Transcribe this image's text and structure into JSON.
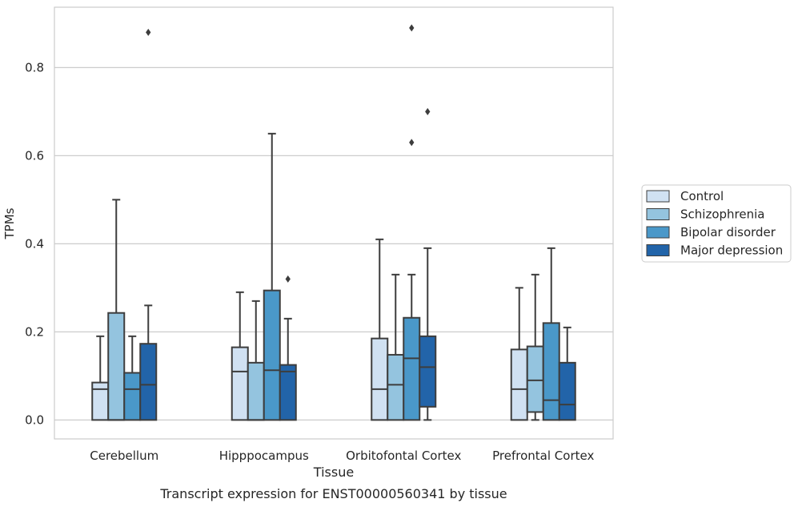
{
  "chart_data": {
    "type": "boxplot",
    "caption": "Transcript expression for ENST00000560341 by tissue",
    "xlabel": "Tissue",
    "ylabel": "TPMs",
    "ylim": [
      -0.043,
      0.937
    ],
    "yticks": [
      0.0,
      0.2,
      0.4,
      0.6,
      0.8
    ],
    "ytick_labels": [
      "0.0",
      "0.2",
      "0.4",
      "0.6",
      "0.8"
    ],
    "grid": "horizontal",
    "legend_position": "right",
    "categories": [
      "Cerebellum",
      "Hipppocampus",
      "Orbitofontal Cortex",
      "Prefrontal Cortex"
    ],
    "series": [
      {
        "name": "Control",
        "color": "#d0e1f2",
        "boxes": [
          {
            "whisker_low": 0.0,
            "q1": 0.0,
            "median": 0.07,
            "q3": 0.085,
            "whisker_high": 0.19,
            "outliers": []
          },
          {
            "whisker_low": 0.0,
            "q1": 0.0,
            "median": 0.11,
            "q3": 0.165,
            "whisker_high": 0.29,
            "outliers": []
          },
          {
            "whisker_low": 0.0,
            "q1": 0.0,
            "median": 0.07,
            "q3": 0.185,
            "whisker_high": 0.41,
            "outliers": []
          },
          {
            "whisker_low": 0.0,
            "q1": 0.0,
            "median": 0.07,
            "q3": 0.16,
            "whisker_high": 0.3,
            "outliers": []
          }
        ]
      },
      {
        "name": "Schizophrenia",
        "color": "#94c4df",
        "boxes": [
          {
            "whisker_low": 0.0,
            "q1": 0.0,
            "median": 0.0,
            "q3": 0.243,
            "whisker_high": 0.5,
            "outliers": []
          },
          {
            "whisker_low": 0.0,
            "q1": 0.0,
            "median": 0.0,
            "q3": 0.13,
            "whisker_high": 0.27,
            "outliers": []
          },
          {
            "whisker_low": 0.0,
            "q1": 0.0,
            "median": 0.08,
            "q3": 0.148,
            "whisker_high": 0.33,
            "outliers": []
          },
          {
            "whisker_low": 0.0,
            "q1": 0.018,
            "median": 0.09,
            "q3": 0.167,
            "whisker_high": 0.33,
            "outliers": []
          }
        ]
      },
      {
        "name": "Bipolar disorder",
        "color": "#4a98c9",
        "boxes": [
          {
            "whisker_low": 0.0,
            "q1": 0.0,
            "median": 0.07,
            "q3": 0.107,
            "whisker_high": 0.19,
            "outliers": []
          },
          {
            "whisker_low": 0.0,
            "q1": 0.0,
            "median": 0.113,
            "q3": 0.294,
            "whisker_high": 0.65,
            "outliers": []
          },
          {
            "whisker_low": 0.0,
            "q1": 0.0,
            "median": 0.14,
            "q3": 0.232,
            "whisker_high": 0.33,
            "outliers": [
              0.89,
              0.63
            ]
          },
          {
            "whisker_low": 0.0,
            "q1": 0.0,
            "median": 0.045,
            "q3": 0.22,
            "whisker_high": 0.39,
            "outliers": []
          }
        ]
      },
      {
        "name": "Major depression",
        "color": "#2264a9",
        "boxes": [
          {
            "whisker_low": 0.0,
            "q1": 0.0,
            "median": 0.08,
            "q3": 0.173,
            "whisker_high": 0.26,
            "outliers": [
              0.88
            ]
          },
          {
            "whisker_low": 0.0,
            "q1": 0.0,
            "median": 0.11,
            "q3": 0.125,
            "whisker_high": 0.23,
            "outliers": [
              0.32
            ]
          },
          {
            "whisker_low": 0.0,
            "q1": 0.03,
            "median": 0.12,
            "q3": 0.19,
            "whisker_high": 0.39,
            "outliers": [
              0.7
            ]
          },
          {
            "whisker_low": 0.0,
            "q1": 0.0,
            "median": 0.035,
            "q3": 0.13,
            "whisker_high": 0.21,
            "outliers": []
          }
        ]
      }
    ]
  }
}
